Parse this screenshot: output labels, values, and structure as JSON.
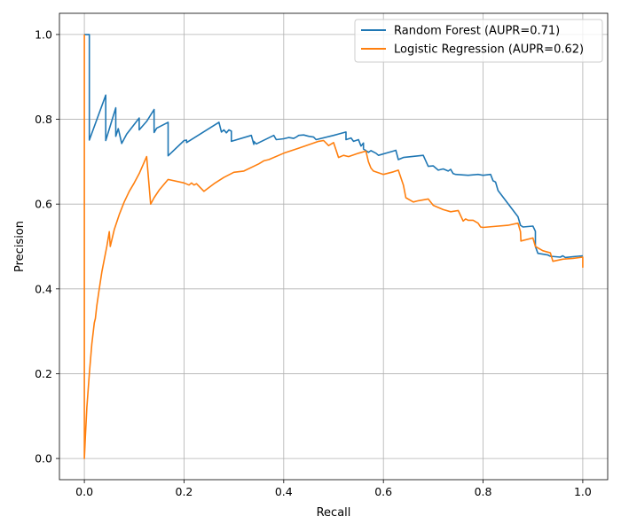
{
  "chart_data": {
    "type": "line",
    "title": "",
    "xlabel": "Recall",
    "ylabel": "Precision",
    "xlim": [
      -0.05,
      1.05
    ],
    "ylim": [
      -0.05,
      1.05
    ],
    "xticks": [
      0.0,
      0.2,
      0.4,
      0.6,
      0.8,
      1.0
    ],
    "yticks": [
      0.0,
      0.2,
      0.4,
      0.6,
      0.8,
      1.0
    ],
    "xtick_labels": [
      "0.0",
      "0.2",
      "0.4",
      "0.6",
      "0.8",
      "1.0"
    ],
    "ytick_labels": [
      "0.0",
      "0.2",
      "0.4",
      "0.6",
      "0.8",
      "1.0"
    ],
    "grid": true,
    "legend_position": "top-right",
    "series": [
      {
        "name": "Random Forest (AUPR=0.71)",
        "color": "#1f77b4",
        "x": [
          0.0,
          0.01,
          0.01,
          0.043,
          0.043,
          0.063,
          0.063,
          0.068,
          0.075,
          0.085,
          0.11,
          0.11,
          0.125,
          0.14,
          0.14,
          0.145,
          0.168,
          0.168,
          0.2,
          0.205,
          0.205,
          0.27,
          0.275,
          0.28,
          0.285,
          0.29,
          0.295,
          0.295,
          0.335,
          0.34,
          0.34,
          0.345,
          0.38,
          0.385,
          0.4,
          0.41,
          0.42,
          0.425,
          0.43,
          0.44,
          0.45,
          0.46,
          0.465,
          0.5,
          0.525,
          0.525,
          0.535,
          0.54,
          0.55,
          0.555,
          0.56,
          0.56,
          0.57,
          0.575,
          0.585,
          0.59,
          0.62,
          0.625,
          0.63,
          0.64,
          0.68,
          0.69,
          0.7,
          0.71,
          0.72,
          0.73,
          0.735,
          0.74,
          0.745,
          0.77,
          0.79,
          0.8,
          0.815,
          0.82,
          0.825,
          0.83,
          0.87,
          0.875,
          0.88,
          0.9,
          0.905,
          0.905,
          0.91,
          0.93,
          0.935,
          0.955,
          0.96,
          0.965,
          0.98,
          1.0
        ],
        "y": [
          1.0,
          1.0,
          0.751,
          0.857,
          0.75,
          0.827,
          0.76,
          0.778,
          0.743,
          0.765,
          0.803,
          0.775,
          0.795,
          0.823,
          0.769,
          0.779,
          0.793,
          0.714,
          0.75,
          0.751,
          0.745,
          0.793,
          0.77,
          0.775,
          0.768,
          0.775,
          0.772,
          0.748,
          0.762,
          0.741,
          0.748,
          0.742,
          0.762,
          0.752,
          0.754,
          0.757,
          0.755,
          0.758,
          0.762,
          0.763,
          0.76,
          0.758,
          0.752,
          0.762,
          0.77,
          0.752,
          0.756,
          0.748,
          0.752,
          0.737,
          0.744,
          0.73,
          0.722,
          0.726,
          0.72,
          0.715,
          0.725,
          0.727,
          0.705,
          0.71,
          0.715,
          0.689,
          0.69,
          0.68,
          0.683,
          0.678,
          0.682,
          0.672,
          0.67,
          0.668,
          0.67,
          0.668,
          0.67,
          0.655,
          0.652,
          0.632,
          0.57,
          0.55,
          0.546,
          0.548,
          0.536,
          0.5,
          0.484,
          0.48,
          0.477,
          0.475,
          0.478,
          0.474,
          0.476,
          0.478
        ]
      },
      {
        "name": "Logistic Regression (AUPR=0.62)",
        "color": "#ff7f0e",
        "x": [
          0.0,
          0.0,
          0.002,
          0.005,
          0.01,
          0.015,
          0.02,
          0.022,
          0.025,
          0.03,
          0.035,
          0.04,
          0.045,
          0.05,
          0.052,
          0.06,
          0.07,
          0.08,
          0.09,
          0.1,
          0.11,
          0.125,
          0.133,
          0.14,
          0.15,
          0.168,
          0.2,
          0.21,
          0.215,
          0.22,
          0.225,
          0.24,
          0.26,
          0.28,
          0.3,
          0.32,
          0.35,
          0.36,
          0.37,
          0.4,
          0.43,
          0.45,
          0.47,
          0.48,
          0.49,
          0.5,
          0.51,
          0.52,
          0.53,
          0.55,
          0.565,
          0.57,
          0.575,
          0.58,
          0.6,
          0.62,
          0.63,
          0.64,
          0.645,
          0.66,
          0.67,
          0.69,
          0.7,
          0.71,
          0.72,
          0.735,
          0.75,
          0.76,
          0.765,
          0.77,
          0.78,
          0.79,
          0.795,
          0.8,
          0.82,
          0.85,
          0.87,
          0.875,
          0.876,
          0.9,
          0.905,
          0.92,
          0.935,
          0.94,
          0.96,
          0.98,
          1.0,
          1.0
        ],
        "y": [
          1.0,
          0.0,
          0.05,
          0.12,
          0.2,
          0.27,
          0.32,
          0.33,
          0.36,
          0.4,
          0.44,
          0.47,
          0.5,
          0.535,
          0.5,
          0.54,
          0.575,
          0.605,
          0.63,
          0.65,
          0.672,
          0.712,
          0.6,
          0.615,
          0.633,
          0.658,
          0.65,
          0.645,
          0.65,
          0.645,
          0.648,
          0.63,
          0.648,
          0.663,
          0.675,
          0.678,
          0.695,
          0.702,
          0.705,
          0.72,
          0.732,
          0.74,
          0.748,
          0.75,
          0.738,
          0.745,
          0.71,
          0.715,
          0.712,
          0.72,
          0.725,
          0.7,
          0.685,
          0.678,
          0.67,
          0.676,
          0.68,
          0.645,
          0.615,
          0.605,
          0.608,
          0.612,
          0.597,
          0.592,
          0.587,
          0.582,
          0.585,
          0.56,
          0.565,
          0.562,
          0.562,
          0.555,
          0.546,
          0.545,
          0.547,
          0.55,
          0.555,
          0.535,
          0.513,
          0.52,
          0.5,
          0.49,
          0.485,
          0.465,
          0.47,
          0.472,
          0.475,
          0.45
        ]
      }
    ]
  }
}
